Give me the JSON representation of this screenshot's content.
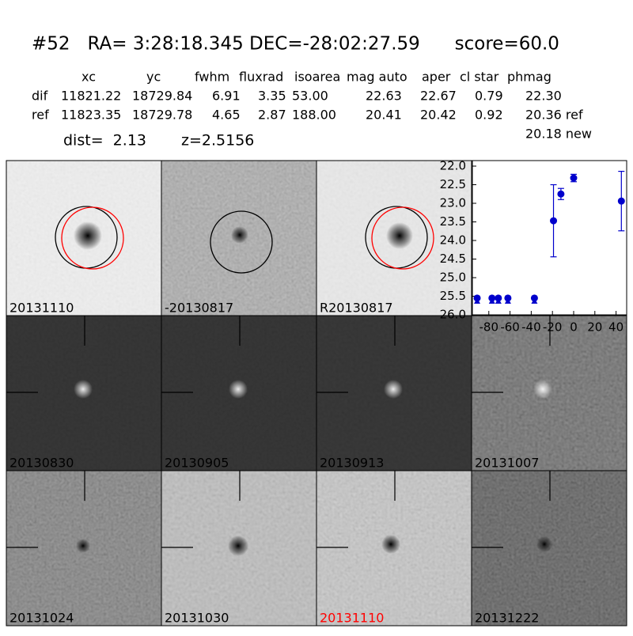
{
  "header": {
    "title": "#52   RA= 3:28:18.345 DEC=-28:02:27.59      score=60.0",
    "table": {
      "columns": [
        "xc",
        "yc",
        "fwhm",
        "fluxrad",
        "isoarea",
        "mag auto",
        "aper",
        "cl star",
        "phmag"
      ],
      "rows": [
        [
          "dif",
          "11821.22",
          "18729.84",
          "6.91",
          "3.35",
          "53.00",
          "22.63",
          "22.67",
          "0.79",
          "22.30"
        ],
        [
          "ref",
          "11823.35",
          "18729.78",
          "4.65",
          "2.87",
          "188.00",
          "20.41",
          "20.42",
          "0.92",
          "20.36 ref"
        ]
      ],
      "extra": "20.18 new"
    },
    "dist": "dist=  2.13",
    "z": "z=2.5156"
  },
  "panels": [
    "20131110",
    "-20130817",
    "R20130817",
    "20130830",
    "20130905",
    "20130913",
    "20131007",
    "20131024",
    "20131030",
    "20131110",
    "20131222"
  ],
  "chart_data": {
    "type": "errorbar",
    "xlim": [
      -95.5,
      50
    ],
    "ylim": [
      26,
      22
    ],
    "xticks": [
      -80,
      -60,
      -40,
      -20,
      0,
      20,
      40
    ],
    "yticks": [
      {
        "value": 22,
        "label": "22.0"
      },
      {
        "value": 22.5,
        "label": "22.5"
      },
      {
        "value": 23,
        "label": "23.0"
      },
      {
        "value": 23.5,
        "label": "23.5"
      },
      {
        "value": 24,
        "label": "24.0"
      },
      {
        "value": 24.5,
        "label": "24.5"
      },
      {
        "value": 25,
        "label": "25.0"
      },
      {
        "value": 25.5,
        "label": "25.5"
      },
      {
        "value": 26,
        "label": "26.0"
      }
    ],
    "series": [
      {
        "color": "#0000cc",
        "marker": "limit",
        "x": [
          -91,
          -77,
          -71,
          -62,
          -37
        ],
        "values": [
          25.55,
          25.55,
          25.55,
          25.55,
          25.55
        ]
      },
      {
        "color": "#0000cc",
        "marker": "circle",
        "x": [
          -19,
          -12,
          0,
          45
        ],
        "values": [
          23.47,
          22.75,
          22.32,
          22.94
        ],
        "errors": [
          0.97,
          0.15,
          0.1,
          0.8
        ]
      }
    ]
  }
}
